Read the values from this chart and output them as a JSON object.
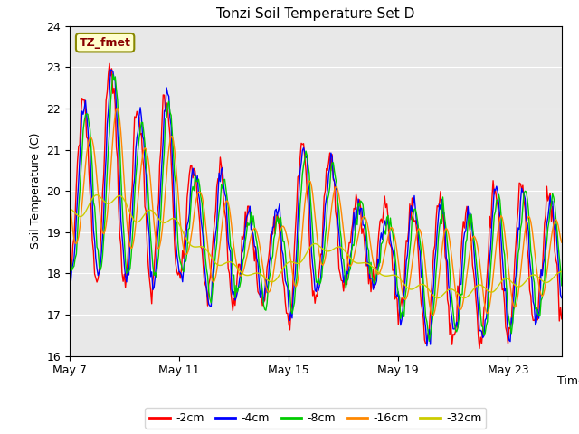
{
  "title": "Tonzi Soil Temperature Set D",
  "xlabel": "Time",
  "ylabel": "Soil Temperature (C)",
  "annotation": "TZ_fmet",
  "ylim": [
    16.0,
    24.0
  ],
  "yticks": [
    16.0,
    17.0,
    18.0,
    19.0,
    20.0,
    21.0,
    22.0,
    23.0,
    24.0
  ],
  "x_tick_labels": [
    "May 7",
    "May 11",
    "May 15",
    "May 19",
    "May 23"
  ],
  "x_tick_positions": [
    0,
    96,
    192,
    288,
    384
  ],
  "total_points": 432,
  "background_color": "#e8e8e8",
  "series_colors": [
    "#ff0000",
    "#0000ff",
    "#00cc00",
    "#ff8800",
    "#cccc00"
  ],
  "series_labels": [
    "-2cm",
    "-4cm",
    "-8cm",
    "-16cm",
    "-32cm"
  ],
  "annotation_box_facecolor": "#ffffcc",
  "annotation_box_edgecolor": "#888800",
  "annotation_text_color": "#880000"
}
